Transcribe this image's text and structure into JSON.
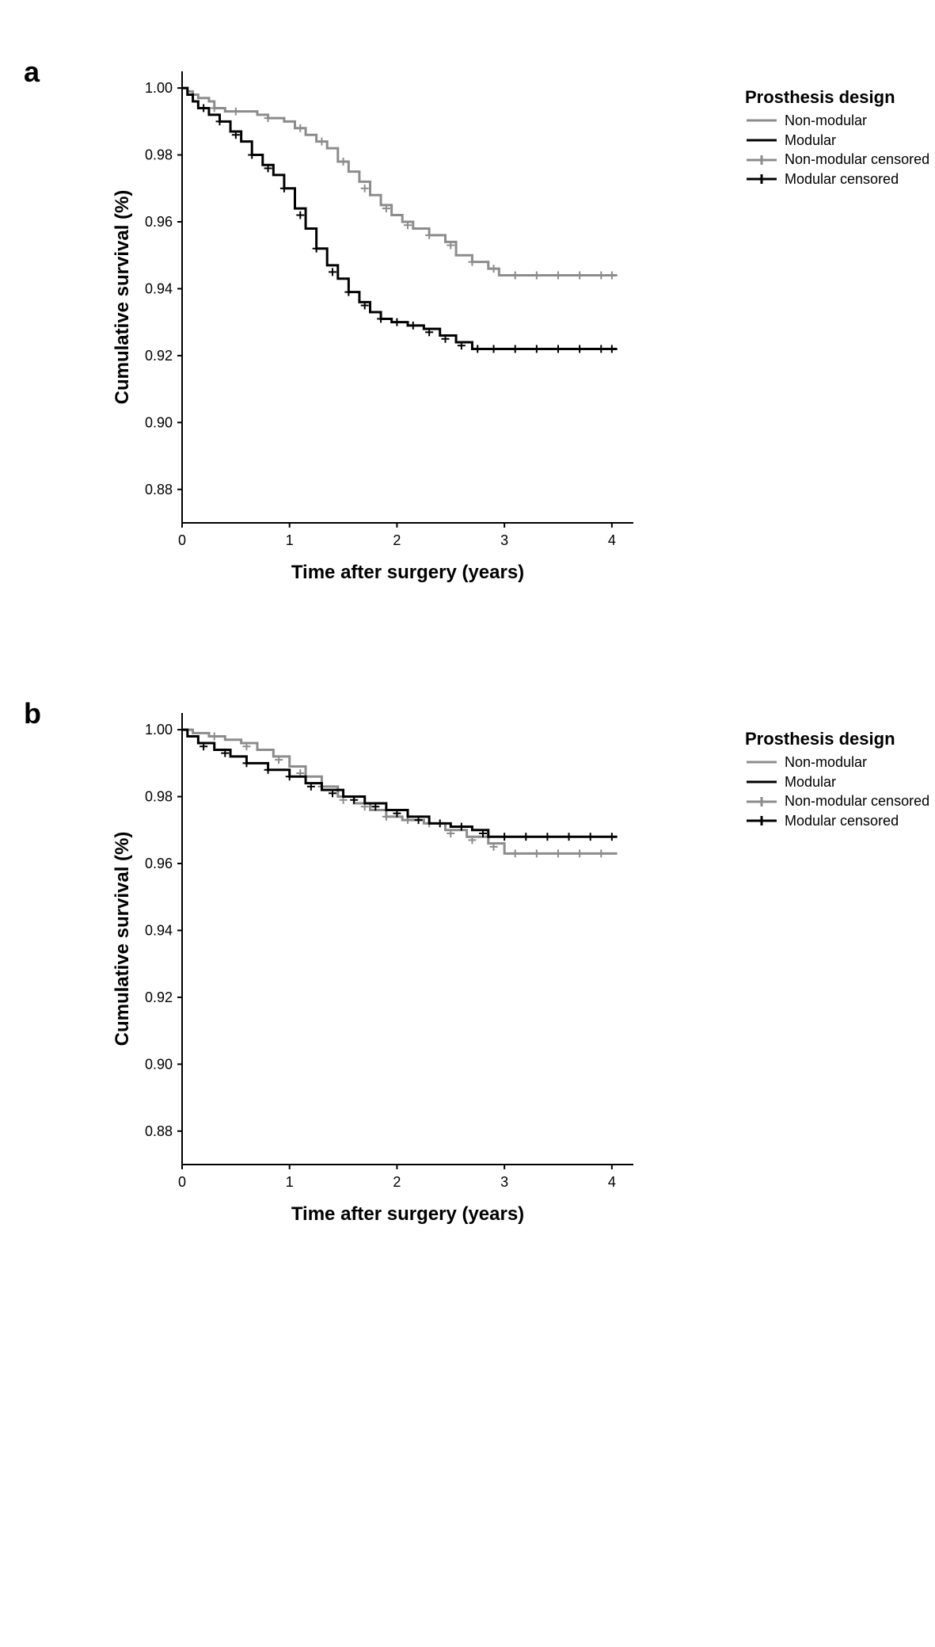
{
  "figure": {
    "background_color": "#ffffff",
    "panels": [
      {
        "label": "a",
        "legend_title": "Prosthesis design",
        "legend_items": [
          {
            "label": "Non-modular",
            "type": "line",
            "color": "#8c8c8c"
          },
          {
            "label": "Modular",
            "type": "line",
            "color": "#000000"
          },
          {
            "label": "Non-modular censored",
            "type": "plus",
            "color": "#8c8c8c"
          },
          {
            "label": "Modular censored",
            "type": "plus",
            "color": "#000000"
          }
        ],
        "xlabel": "Time after surgery (years)",
        "ylabel": "Cumulative survival (%)",
        "xlim": [
          0,
          4.2
        ],
        "ylim": [
          0.87,
          1.005
        ],
        "xticks": [
          0,
          1,
          2,
          3,
          4
        ],
        "yticks": [
          0.88,
          0.9,
          0.92,
          0.94,
          0.96,
          0.98,
          1.0
        ],
        "ytick_labels": [
          "0.88",
          "0.90",
          "0.92",
          "0.94",
          "0.96",
          "0.98",
          "1.00"
        ],
        "tick_fontsize": 18,
        "label_fontsize": 24,
        "axis_color": "#000000",
        "line_width": 3,
        "series": [
          {
            "name": "Non-modular",
            "color": "#8c8c8c",
            "points": [
              [
                0.0,
                1.0
              ],
              [
                0.05,
                0.999
              ],
              [
                0.1,
                0.998
              ],
              [
                0.15,
                0.997
              ],
              [
                0.25,
                0.996
              ],
              [
                0.3,
                0.994
              ],
              [
                0.4,
                0.993
              ],
              [
                0.55,
                0.993
              ],
              [
                0.7,
                0.992
              ],
              [
                0.8,
                0.991
              ],
              [
                0.95,
                0.99
              ],
              [
                1.05,
                0.988
              ],
              [
                1.15,
                0.986
              ],
              [
                1.25,
                0.984
              ],
              [
                1.35,
                0.982
              ],
              [
                1.45,
                0.978
              ],
              [
                1.55,
                0.975
              ],
              [
                1.65,
                0.972
              ],
              [
                1.75,
                0.968
              ],
              [
                1.85,
                0.965
              ],
              [
                1.95,
                0.962
              ],
              [
                2.05,
                0.96
              ],
              [
                2.15,
                0.958
              ],
              [
                2.3,
                0.956
              ],
              [
                2.45,
                0.954
              ],
              [
                2.55,
                0.95
              ],
              [
                2.7,
                0.948
              ],
              [
                2.85,
                0.946
              ],
              [
                2.95,
                0.944
              ],
              [
                3.2,
                0.944
              ],
              [
                3.5,
                0.944
              ],
              [
                3.8,
                0.944
              ],
              [
                4.05,
                0.944
              ]
            ],
            "censor_marks": [
              [
                0.3,
                0.994
              ],
              [
                0.5,
                0.993
              ],
              [
                0.8,
                0.991
              ],
              [
                1.1,
                0.988
              ],
              [
                1.3,
                0.984
              ],
              [
                1.5,
                0.978
              ],
              [
                1.7,
                0.97
              ],
              [
                1.9,
                0.964
              ],
              [
                2.1,
                0.959
              ],
              [
                2.3,
                0.956
              ],
              [
                2.5,
                0.953
              ],
              [
                2.7,
                0.948
              ],
              [
                2.9,
                0.946
              ],
              [
                3.1,
                0.944
              ],
              [
                3.3,
                0.944
              ],
              [
                3.5,
                0.944
              ],
              [
                3.7,
                0.944
              ],
              [
                3.9,
                0.944
              ],
              [
                4.0,
                0.944
              ]
            ]
          },
          {
            "name": "Modular",
            "color": "#000000",
            "points": [
              [
                0.0,
                1.0
              ],
              [
                0.05,
                0.998
              ],
              [
                0.1,
                0.996
              ],
              [
                0.15,
                0.994
              ],
              [
                0.25,
                0.992
              ],
              [
                0.35,
                0.99
              ],
              [
                0.45,
                0.987
              ],
              [
                0.55,
                0.984
              ],
              [
                0.65,
                0.98
              ],
              [
                0.75,
                0.977
              ],
              [
                0.85,
                0.974
              ],
              [
                0.95,
                0.97
              ],
              [
                1.05,
                0.964
              ],
              [
                1.15,
                0.958
              ],
              [
                1.25,
                0.952
              ],
              [
                1.35,
                0.947
              ],
              [
                1.45,
                0.943
              ],
              [
                1.55,
                0.939
              ],
              [
                1.65,
                0.936
              ],
              [
                1.75,
                0.933
              ],
              [
                1.85,
                0.931
              ],
              [
                1.95,
                0.93
              ],
              [
                2.1,
                0.929
              ],
              [
                2.25,
                0.928
              ],
              [
                2.4,
                0.926
              ],
              [
                2.55,
                0.924
              ],
              [
                2.7,
                0.922
              ],
              [
                2.9,
                0.922
              ],
              [
                3.2,
                0.922
              ],
              [
                3.5,
                0.922
              ],
              [
                3.8,
                0.922
              ],
              [
                4.05,
                0.922
              ]
            ],
            "censor_marks": [
              [
                0.2,
                0.994
              ],
              [
                0.35,
                0.99
              ],
              [
                0.5,
                0.986
              ],
              [
                0.65,
                0.98
              ],
              [
                0.8,
                0.976
              ],
              [
                0.95,
                0.97
              ],
              [
                1.1,
                0.962
              ],
              [
                1.25,
                0.952
              ],
              [
                1.4,
                0.945
              ],
              [
                1.55,
                0.939
              ],
              [
                1.7,
                0.935
              ],
              [
                1.85,
                0.931
              ],
              [
                2.0,
                0.93
              ],
              [
                2.15,
                0.929
              ],
              [
                2.3,
                0.927
              ],
              [
                2.45,
                0.925
              ],
              [
                2.6,
                0.923
              ],
              [
                2.75,
                0.922
              ],
              [
                2.9,
                0.922
              ],
              [
                3.1,
                0.922
              ],
              [
                3.3,
                0.922
              ],
              [
                3.5,
                0.922
              ],
              [
                3.7,
                0.922
              ],
              [
                3.9,
                0.922
              ],
              [
                4.0,
                0.922
              ]
            ]
          }
        ]
      },
      {
        "label": "b",
        "legend_title": "Prosthesis design",
        "legend_items": [
          {
            "label": "Non-modular",
            "type": "line",
            "color": "#8c8c8c"
          },
          {
            "label": "Modular",
            "type": "line",
            "color": "#000000"
          },
          {
            "label": "Non-modular censored",
            "type": "plus",
            "color": "#8c8c8c"
          },
          {
            "label": "Modular censored",
            "type": "plus",
            "color": "#000000"
          }
        ],
        "xlabel": "Time after surgery (years)",
        "ylabel": "Cumulative survival (%)",
        "xlim": [
          0,
          4.2
        ],
        "ylim": [
          0.87,
          1.005
        ],
        "xticks": [
          0,
          1,
          2,
          3,
          4
        ],
        "yticks": [
          0.88,
          0.9,
          0.92,
          0.94,
          0.96,
          0.98,
          1.0
        ],
        "ytick_labels": [
          "0.88",
          "0.90",
          "0.92",
          "0.94",
          "0.96",
          "0.98",
          "1.00"
        ],
        "tick_fontsize": 18,
        "label_fontsize": 24,
        "axis_color": "#000000",
        "line_width": 3,
        "series": [
          {
            "name": "Non-modular",
            "color": "#8c8c8c",
            "points": [
              [
                0.0,
                1.0
              ],
              [
                0.1,
                0.999
              ],
              [
                0.25,
                0.998
              ],
              [
                0.4,
                0.997
              ],
              [
                0.55,
                0.996
              ],
              [
                0.7,
                0.994
              ],
              [
                0.85,
                0.992
              ],
              [
                1.0,
                0.989
              ],
              [
                1.15,
                0.986
              ],
              [
                1.3,
                0.983
              ],
              [
                1.45,
                0.98
              ],
              [
                1.6,
                0.978
              ],
              [
                1.75,
                0.976
              ],
              [
                1.9,
                0.974
              ],
              [
                2.05,
                0.973
              ],
              [
                2.25,
                0.972
              ],
              [
                2.45,
                0.97
              ],
              [
                2.65,
                0.968
              ],
              [
                2.85,
                0.966
              ],
              [
                3.0,
                0.963
              ],
              [
                3.3,
                0.963
              ],
              [
                3.6,
                0.963
              ],
              [
                3.9,
                0.963
              ],
              [
                4.05,
                0.963
              ]
            ],
            "censor_marks": [
              [
                0.3,
                0.998
              ],
              [
                0.6,
                0.995
              ],
              [
                0.9,
                0.991
              ],
              [
                1.1,
                0.987
              ],
              [
                1.3,
                0.983
              ],
              [
                1.5,
                0.979
              ],
              [
                1.7,
                0.977
              ],
              [
                1.9,
                0.974
              ],
              [
                2.1,
                0.973
              ],
              [
                2.3,
                0.972
              ],
              [
                2.5,
                0.969
              ],
              [
                2.7,
                0.967
              ],
              [
                2.9,
                0.965
              ],
              [
                3.1,
                0.963
              ],
              [
                3.3,
                0.963
              ],
              [
                3.5,
                0.963
              ],
              [
                3.7,
                0.963
              ],
              [
                3.9,
                0.963
              ]
            ]
          },
          {
            "name": "Modular",
            "color": "#000000",
            "points": [
              [
                0.0,
                1.0
              ],
              [
                0.05,
                0.998
              ],
              [
                0.15,
                0.996
              ],
              [
                0.3,
                0.994
              ],
              [
                0.45,
                0.992
              ],
              [
                0.6,
                0.99
              ],
              [
                0.8,
                0.988
              ],
              [
                1.0,
                0.986
              ],
              [
                1.15,
                0.984
              ],
              [
                1.3,
                0.982
              ],
              [
                1.5,
                0.98
              ],
              [
                1.7,
                0.978
              ],
              [
                1.9,
                0.976
              ],
              [
                2.1,
                0.974
              ],
              [
                2.3,
                0.972
              ],
              [
                2.5,
                0.971
              ],
              [
                2.7,
                0.97
              ],
              [
                2.85,
                0.968
              ],
              [
                3.0,
                0.968
              ],
              [
                3.3,
                0.968
              ],
              [
                3.6,
                0.968
              ],
              [
                3.9,
                0.968
              ],
              [
                4.05,
                0.968
              ]
            ],
            "censor_marks": [
              [
                0.2,
                0.995
              ],
              [
                0.4,
                0.993
              ],
              [
                0.6,
                0.99
              ],
              [
                0.8,
                0.988
              ],
              [
                1.0,
                0.986
              ],
              [
                1.2,
                0.983
              ],
              [
                1.4,
                0.981
              ],
              [
                1.6,
                0.979
              ],
              [
                1.8,
                0.977
              ],
              [
                2.0,
                0.975
              ],
              [
                2.2,
                0.973
              ],
              [
                2.4,
                0.972
              ],
              [
                2.6,
                0.971
              ],
              [
                2.8,
                0.969
              ],
              [
                3.0,
                0.968
              ],
              [
                3.2,
                0.968
              ],
              [
                3.4,
                0.968
              ],
              [
                3.6,
                0.968
              ],
              [
                3.8,
                0.968
              ],
              [
                4.0,
                0.968
              ]
            ]
          }
        ]
      }
    ]
  }
}
